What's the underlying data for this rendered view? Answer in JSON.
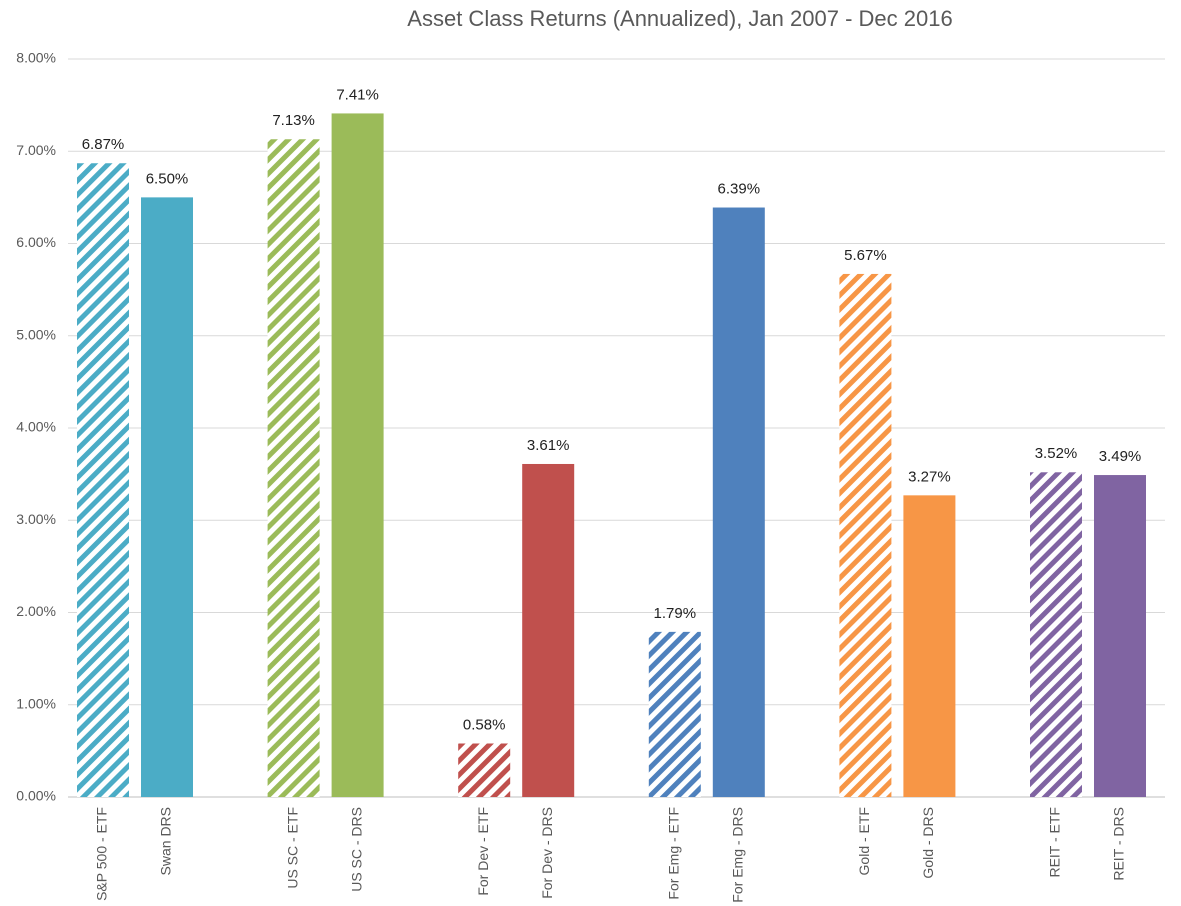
{
  "chart_data": {
    "type": "bar",
    "title": "Asset Class Returns (Annualized), Jan 2007 - Dec 2016",
    "categories": [
      "S&P 500 - ETF",
      "Swan DRS",
      "US SC - ETF",
      "US SC - DRS",
      "For Dev - ETF",
      "For Dev - DRS",
      "For Emg - ETF",
      "For Emg - DRS",
      "Gold - ETF",
      "Gold - DRS",
      "REIT - ETF",
      "REIT - DRS"
    ],
    "values": [
      6.87,
      6.5,
      7.13,
      7.41,
      0.58,
      3.61,
      1.79,
      6.39,
      5.67,
      3.27,
      3.52,
      3.49
    ],
    "value_labels": [
      "6.87%",
      "6.50%",
      "7.13%",
      "7.41%",
      "0.58%",
      "3.61%",
      "1.79%",
      "6.39%",
      "5.67%",
      "3.27%",
      "3.52%",
      "3.49%"
    ],
    "colors": [
      "#4bacc6",
      "#4bacc6",
      "#9bbb59",
      "#9bbb59",
      "#c0504d",
      "#c0504d",
      "#4f81bd",
      "#4f81bd",
      "#f79646",
      "#f79646",
      "#8064a2",
      "#8064a2"
    ],
    "hatched": [
      true,
      false,
      true,
      false,
      true,
      false,
      true,
      false,
      true,
      false,
      true,
      false
    ],
    "ylim": [
      0,
      8
    ],
    "yticks": [
      {
        "value": 0,
        "label": "0.00%"
      },
      {
        "value": 1,
        "label": "1.00%"
      },
      {
        "value": 2,
        "label": "2.00%"
      },
      {
        "value": 3,
        "label": "3.00%"
      },
      {
        "value": 4,
        "label": "4.00%"
      },
      {
        "value": 5,
        "label": "5.00%"
      },
      {
        "value": 6,
        "label": "6.00%"
      },
      {
        "value": 7,
        "label": "7.00%"
      },
      {
        "value": 8,
        "label": "8.00%"
      }
    ],
    "grid": true
  }
}
